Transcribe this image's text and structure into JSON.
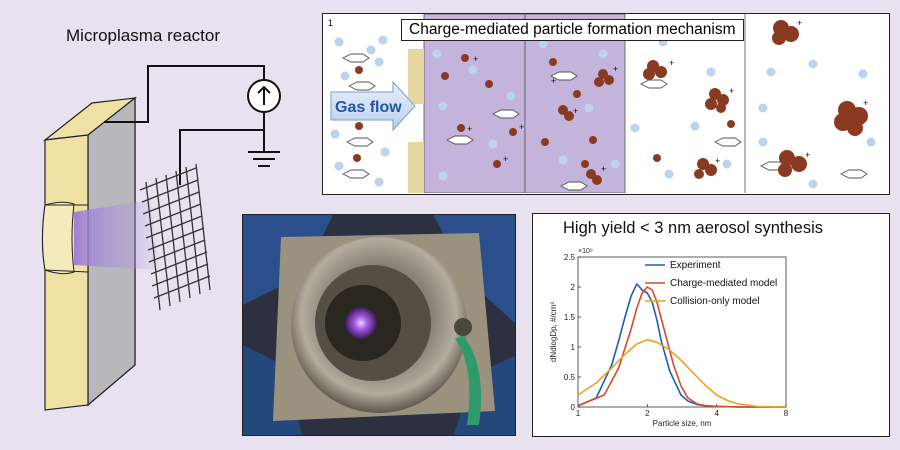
{
  "reactor": {
    "title": "Microplasma reactor"
  },
  "mechanism": {
    "panel_number": "1",
    "title": "Charge-mediated particle formation mechanism",
    "gas_flow_label": "Gas flow"
  },
  "chart_data": {
    "type": "line",
    "title": "High yield < 3 nm aerosol synthesis",
    "xlabel": "Particle size, nm",
    "ylabel": "dNdlogDp, #/cm³",
    "y_exponent": "×10⁹",
    "xscale": "log",
    "xlim": [
      1,
      8
    ],
    "ylim": [
      0,
      2.5
    ],
    "xticks": [
      1,
      2,
      4,
      8
    ],
    "xtick_labels": [
      "1",
      "2",
      "4",
      "8"
    ],
    "yticks": [
      0,
      0.5,
      1,
      1.5,
      2,
      2.5
    ],
    "ytick_labels": [
      "0",
      "0.5",
      "1",
      "1.5",
      "2",
      "2.5"
    ],
    "legend_position": "top-right",
    "series": [
      {
        "name": "Experiment",
        "color": "#1f5fb0",
        "x": [
          1.0,
          1.2,
          1.4,
          1.5,
          1.6,
          1.7,
          1.8,
          1.9,
          2.0,
          2.1,
          2.2,
          2.3,
          2.5,
          2.8,
          3.0,
          3.3,
          3.6,
          4.0,
          5.0,
          8.0
        ],
        "y": [
          0.02,
          0.15,
          0.7,
          1.1,
          1.5,
          1.85,
          2.05,
          1.95,
          1.9,
          1.75,
          1.45,
          1.1,
          0.6,
          0.2,
          0.1,
          0.04,
          0.02,
          0.01,
          0.0,
          0.0
        ]
      },
      {
        "name": "Charge-mediated model",
        "color": "#d9492a",
        "x": [
          1.0,
          1.3,
          1.5,
          1.7,
          1.8,
          1.9,
          2.0,
          2.1,
          2.2,
          2.4,
          2.6,
          2.8,
          3.0,
          3.3,
          3.6,
          4.0,
          5.0,
          8.0
        ],
        "y": [
          0.02,
          0.2,
          0.65,
          1.3,
          1.65,
          1.9,
          2.0,
          1.95,
          1.75,
          1.2,
          0.7,
          0.35,
          0.15,
          0.05,
          0.02,
          0.01,
          0.0,
          0.0
        ]
      },
      {
        "name": "Collision-only model",
        "color": "#f0a020",
        "x": [
          1.0,
          1.2,
          1.4,
          1.6,
          1.8,
          2.0,
          2.2,
          2.5,
          2.8,
          3.2,
          3.6,
          4.0,
          4.5,
          5.0,
          6.0,
          8.0
        ],
        "y": [
          0.2,
          0.4,
          0.65,
          0.88,
          1.05,
          1.12,
          1.08,
          0.95,
          0.78,
          0.55,
          0.35,
          0.2,
          0.1,
          0.05,
          0.01,
          0.0
        ]
      }
    ]
  }
}
